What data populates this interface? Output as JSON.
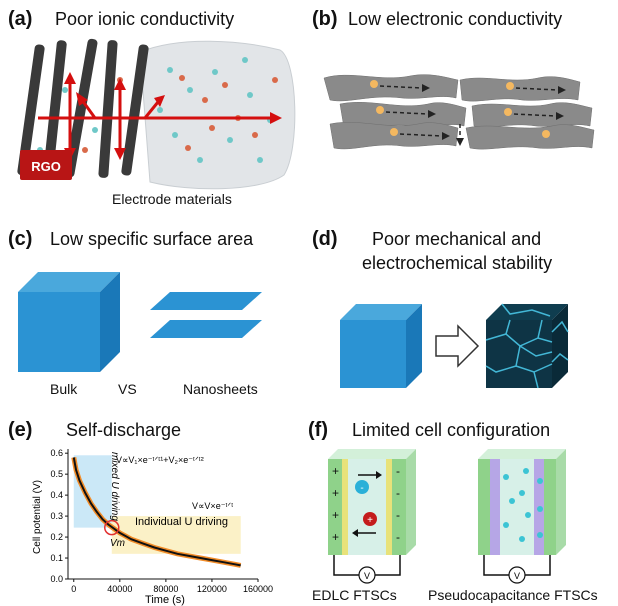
{
  "panels": {
    "a": {
      "label": "(a)",
      "title": "Poor ionic conductivity",
      "badge": "RGO",
      "caption": "Electrode materials"
    },
    "b": {
      "label": "(b)",
      "title": "Low electronic conductivity"
    },
    "c": {
      "label": "(c)",
      "title": "Low specific surface area",
      "left_caption": "Bulk",
      "middle_caption": "VS",
      "right_caption": "Nanosheets"
    },
    "d": {
      "label": "(d)",
      "title_line1": "Poor mechanical and",
      "title_line2": "electrochemical stability"
    },
    "e": {
      "label": "(e)",
      "title": "Self-discharge",
      "mixed_label": "mixed U driving",
      "mixed_formula": "V∝V₁×e⁻ᵗᐟᵗ¹+V₂×e⁻ᵗᐟᵗ²",
      "individual_formula": "V∝V×e⁻ᵗᐟᵗ",
      "individual_label": "Individual U driving",
      "vt_label": "Vт"
    },
    "f": {
      "label": "(f)",
      "title": "Limited cell configuration",
      "left_caption": "EDLC FTSCs",
      "right_caption": "Pseudocapacitance FTSCs",
      "voltmeter": "V"
    }
  },
  "chart_data": {
    "type": "line",
    "xlabel": "Time (s)",
    "ylabel": "Cell potential (V)",
    "xlim": [
      -5000,
      160000
    ],
    "ylim": [
      0,
      0.62
    ],
    "x_ticks": [
      "0",
      "40000",
      "80000",
      "120000",
      "160000"
    ],
    "y_ticks": [
      "0.0",
      "0.1",
      "0.2",
      "0.3",
      "0.4",
      "0.5",
      "0.6"
    ],
    "series": [
      {
        "x": [
          0,
          1000,
          2000,
          5000,
          10000,
          15000,
          20000,
          25000,
          30000,
          35000,
          40000,
          50000,
          60000,
          70000,
          80000,
          90000,
          100000,
          110000,
          120000,
          130000,
          140000,
          145000
        ],
        "y": [
          0.58,
          0.55,
          0.52,
          0.47,
          0.41,
          0.36,
          0.32,
          0.285,
          0.26,
          0.24,
          0.22,
          0.19,
          0.17,
          0.15,
          0.135,
          0.12,
          0.11,
          0.1,
          0.09,
          0.08,
          0.07,
          0.065
        ]
      }
    ],
    "grid": false,
    "highlight_point": {
      "x": 33000,
      "y": 0.245
    }
  }
}
